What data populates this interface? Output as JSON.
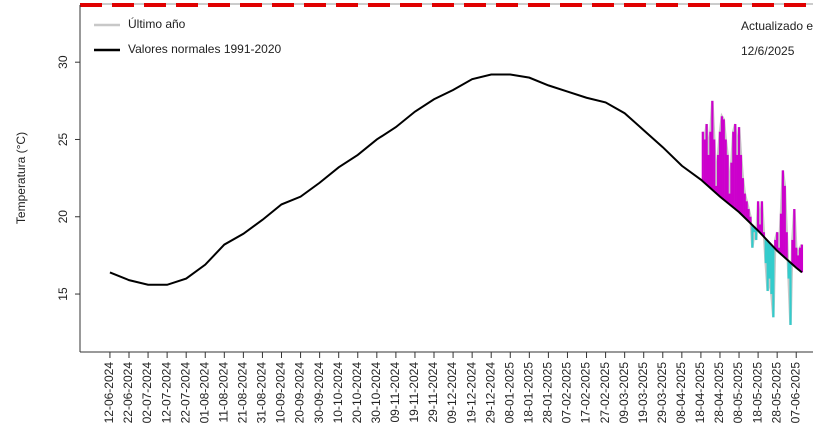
{
  "chart_data": {
    "type": "line",
    "ylabel": "Temperatura (°C)",
    "legend": "top-left",
    "note_title": "Actualizado e",
    "note_date": "12/6/2025",
    "above_color": "#cc00cc",
    "below_color": "#33cccc",
    "xlim": [
      -15.7,
      368.8
    ],
    "ylim": [
      11.25,
      33.7
    ],
    "yticks": [
      15,
      20,
      25,
      30
    ],
    "xticks": [
      {
        "value": 0,
        "label": "12-06-2024"
      },
      {
        "value": 10,
        "label": "22-06-2024"
      },
      {
        "value": 20,
        "label": "02-07-2024"
      },
      {
        "value": 30,
        "label": "12-07-2024"
      },
      {
        "value": 40,
        "label": "22-07-2024"
      },
      {
        "value": 50,
        "label": "01-08-2024"
      },
      {
        "value": 60,
        "label": "11-08-2024"
      },
      {
        "value": 70,
        "label": "21-08-2024"
      },
      {
        "value": 80,
        "label": "31-08-2024"
      },
      {
        "value": 90,
        "label": "10-09-2024"
      },
      {
        "value": 100,
        "label": "20-09-2024"
      },
      {
        "value": 110,
        "label": "30-09-2024"
      },
      {
        "value": 120,
        "label": "10-10-2024"
      },
      {
        "value": 130,
        "label": "20-10-2024"
      },
      {
        "value": 140,
        "label": "30-10-2024"
      },
      {
        "value": 150,
        "label": "09-11-2024"
      },
      {
        "value": 160,
        "label": "19-11-2024"
      },
      {
        "value": 170,
        "label": "29-11-2024"
      },
      {
        "value": 180,
        "label": "09-12-2024"
      },
      {
        "value": 190,
        "label": "19-12-2024"
      },
      {
        "value": 200,
        "label": "29-12-2024"
      },
      {
        "value": 210,
        "label": "08-01-2025"
      },
      {
        "value": 220,
        "label": "18-01-2025"
      },
      {
        "value": 230,
        "label": "28-01-2025"
      },
      {
        "value": 240,
        "label": "07-02-2025"
      },
      {
        "value": 250,
        "label": "17-02-2025"
      },
      {
        "value": 260,
        "label": "27-02-2025"
      },
      {
        "value": 270,
        "label": "09-03-2025"
      },
      {
        "value": 280,
        "label": "19-03-2025"
      },
      {
        "value": 290,
        "label": "29-03-2025"
      },
      {
        "value": 300,
        "label": "08-04-2025"
      },
      {
        "value": 310,
        "label": "18-04-2025"
      },
      {
        "value": 320,
        "label": "28-04-2025"
      },
      {
        "value": 330,
        "label": "08-05-2025"
      },
      {
        "value": 340,
        "label": "18-05-2025"
      },
      {
        "value": 350,
        "label": "28-05-2025"
      },
      {
        "value": 360,
        "label": "07-06-2025"
      }
    ],
    "series": [
      {
        "name": "Último año",
        "color": "#c8c8c8",
        "x": [
          311,
          312,
          313,
          314,
          315,
          316,
          317,
          318,
          319,
          320,
          321,
          322,
          323,
          324,
          325,
          326,
          327,
          328,
          329,
          330,
          331,
          332,
          333,
          334,
          335,
          336,
          337,
          338,
          339,
          340,
          341,
          342,
          343,
          344,
          345,
          346,
          347,
          348,
          349,
          350,
          351,
          352,
          353,
          354,
          355,
          356,
          357,
          358,
          359,
          360,
          361,
          362,
          363
        ],
        "values": [
          25.5,
          25,
          26,
          24,
          25.5,
          27.5,
          25,
          22,
          24,
          25.5,
          26.5,
          26.3,
          25,
          24,
          21.5,
          23.5,
          25.5,
          26,
          24,
          25.8,
          24,
          22.5,
          21.5,
          21,
          20.5,
          20,
          18,
          19,
          18.5,
          21,
          19.5,
          21,
          19,
          17,
          15.2,
          16,
          15,
          13.5,
          18.5,
          19,
          18,
          20.2,
          23,
          22,
          19,
          16,
          13,
          18.5,
          20.5,
          18,
          17.5,
          18,
          18.2
        ]
      },
      {
        "name": "Valores normales 1991-2020",
        "color": "#000000",
        "x": [
          0,
          10,
          20,
          30,
          40,
          50,
          60,
          70,
          80,
          90,
          100,
          110,
          120,
          130,
          140,
          150,
          160,
          170,
          180,
          190,
          200,
          210,
          220,
          230,
          240,
          250,
          260,
          270,
          280,
          290,
          300,
          310,
          320,
          330,
          340,
          350,
          360,
          363
        ],
        "values": [
          16.4,
          15.9,
          15.6,
          15.6,
          16.0,
          16.9,
          18.2,
          18.9,
          19.8,
          20.8,
          21.3,
          22.2,
          23.2,
          24.0,
          25.0,
          25.8,
          26.8,
          27.6,
          28.2,
          28.9,
          29.2,
          29.2,
          29.0,
          28.5,
          28.1,
          27.7,
          27.4,
          26.7,
          25.6,
          24.5,
          23.3,
          22.4,
          21.3,
          20.3,
          19.1,
          17.8,
          16.7,
          16.4
        ]
      }
    ]
  }
}
